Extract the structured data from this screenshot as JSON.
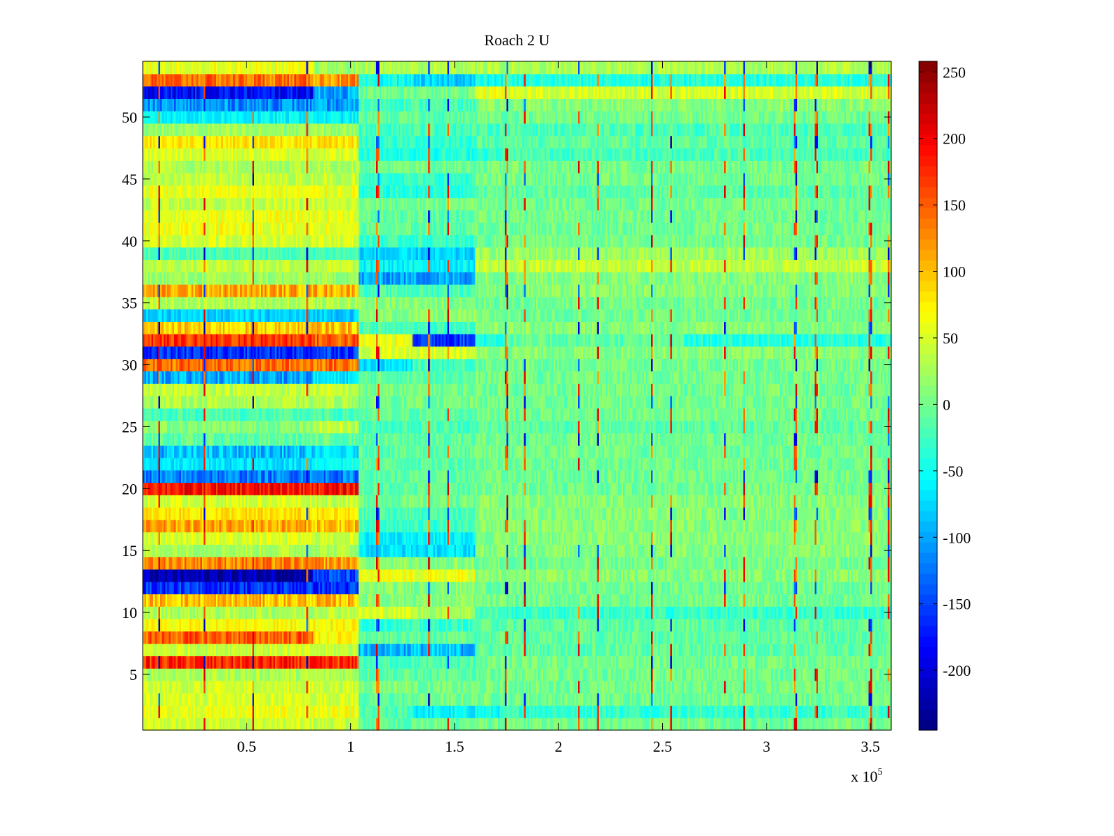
{
  "chart_data": {
    "type": "heatmap",
    "title": "Roach 2 U",
    "xlabel": "",
    "ylabel": "",
    "x_multiplier_label": {
      "base": "x 10",
      "exponent": "5"
    },
    "xlim": [
      0,
      3.6
    ],
    "ylim": [
      0.5,
      54.5
    ],
    "x_ticks": [
      0.5,
      1,
      1.5,
      2,
      2.5,
      3,
      3.5
    ],
    "x_tick_labels": [
      "0.5",
      "1",
      "1.5",
      "2",
      "2.5",
      "3",
      "3.5"
    ],
    "y_ticks": [
      5,
      10,
      15,
      20,
      25,
      30,
      35,
      40,
      45,
      50
    ],
    "y_tick_labels": [
      "5",
      "10",
      "15",
      "20",
      "25",
      "30",
      "35",
      "40",
      "45",
      "50"
    ],
    "colorbar": {
      "colormap": "jet",
      "clim": [
        -245,
        258
      ],
      "ticks": [
        250,
        200,
        150,
        100,
        50,
        0,
        -50,
        -100,
        -150,
        -200
      ],
      "tick_labels": [
        "250",
        "200",
        "150",
        "100",
        "50",
        "0",
        "-50",
        "-100",
        "-150",
        "-200"
      ]
    },
    "rows": 54,
    "segment_edges_x1e5": [
      0,
      0.82,
      1.04,
      1.3,
      1.6,
      1.73,
      2.6,
      3.6
    ],
    "row_segment_means": {
      "1": [
        45,
        40,
        -10,
        0,
        0,
        0,
        0
      ],
      "2": [
        60,
        60,
        -20,
        -60,
        -50,
        -30,
        -30
      ],
      "3": [
        50,
        50,
        -10,
        0,
        0,
        0,
        0
      ],
      "4": [
        45,
        45,
        10,
        0,
        0,
        0,
        0
      ],
      "5": [
        30,
        30,
        -10,
        -10,
        0,
        0,
        0
      ],
      "6": [
        175,
        170,
        -20,
        -20,
        0,
        0,
        0
      ],
      "7": [
        45,
        40,
        -90,
        -90,
        -10,
        -10,
        -10
      ],
      "8": [
        150,
        70,
        -10,
        -10,
        -10,
        -10,
        -10
      ],
      "9": [
        70,
        70,
        -30,
        -30,
        -10,
        -10,
        -10
      ],
      "10": [
        30,
        40,
        50,
        30,
        -20,
        -30,
        -30
      ],
      "11": [
        100,
        100,
        10,
        10,
        0,
        0,
        0
      ],
      "12": [
        -160,
        -160,
        10,
        10,
        0,
        0,
        0
      ],
      "13": [
        -220,
        -150,
        60,
        60,
        10,
        10,
        10
      ],
      "14": [
        130,
        120,
        10,
        10,
        0,
        0,
        0
      ],
      "15": [
        30,
        30,
        -70,
        -70,
        10,
        10,
        10
      ],
      "16": [
        50,
        45,
        -60,
        -60,
        10,
        10,
        10
      ],
      "17": [
        110,
        100,
        -30,
        -30,
        10,
        10,
        10
      ],
      "18": [
        80,
        75,
        -20,
        -20,
        10,
        10,
        10
      ],
      "19": [
        50,
        40,
        0,
        0,
        10,
        10,
        10
      ],
      "20": [
        190,
        190,
        -10,
        -10,
        0,
        0,
        0
      ],
      "21": [
        -120,
        -120,
        -10,
        -10,
        0,
        0,
        0
      ],
      "22": [
        -70,
        -50,
        -10,
        -10,
        0,
        0,
        0
      ],
      "23": [
        -90,
        -70,
        -10,
        -10,
        0,
        0,
        0
      ],
      "24": [
        -10,
        -10,
        -10,
        -10,
        0,
        0,
        0
      ],
      "25": [
        10,
        40,
        -20,
        -20,
        -10,
        -10,
        -10
      ],
      "26": [
        -20,
        -20,
        -10,
        -10,
        0,
        0,
        0
      ],
      "27": [
        30,
        30,
        0,
        0,
        0,
        0,
        0
      ],
      "28": [
        40,
        40,
        0,
        0,
        0,
        0,
        0
      ],
      "29": [
        -100,
        -70,
        -10,
        -10,
        0,
        0,
        0
      ],
      "30": [
        140,
        140,
        -70,
        -20,
        0,
        0,
        0
      ],
      "31": [
        -160,
        -150,
        50,
        50,
        10,
        10,
        10
      ],
      "32": [
        170,
        150,
        60,
        -150,
        -40,
        -10,
        -40
      ],
      "33": [
        90,
        100,
        -20,
        -20,
        10,
        10,
        10
      ],
      "34": [
        -80,
        -80,
        10,
        10,
        0,
        0,
        0
      ],
      "35": [
        30,
        30,
        10,
        10,
        0,
        0,
        0
      ],
      "36": [
        110,
        110,
        -20,
        -20,
        10,
        10,
        10
      ],
      "37": [
        20,
        20,
        -100,
        -100,
        10,
        10,
        10
      ],
      "38": [
        40,
        40,
        -60,
        -60,
        40,
        40,
        40
      ],
      "39": [
        -20,
        -20,
        -80,
        -80,
        20,
        20,
        20
      ],
      "40": [
        50,
        50,
        -30,
        -30,
        0,
        0,
        0
      ],
      "41": [
        60,
        60,
        -10,
        -10,
        0,
        0,
        0
      ],
      "42": [
        60,
        60,
        -10,
        -10,
        0,
        0,
        0
      ],
      "43": [
        40,
        40,
        0,
        0,
        0,
        0,
        0
      ],
      "44": [
        60,
        60,
        -40,
        -40,
        -10,
        -10,
        -10
      ],
      "45": [
        40,
        40,
        -30,
        -30,
        0,
        0,
        0
      ],
      "46": [
        30,
        30,
        0,
        0,
        0,
        0,
        0
      ],
      "47": [
        50,
        50,
        -40,
        -40,
        -30,
        -20,
        -20
      ],
      "48": [
        80,
        80,
        -30,
        -30,
        -10,
        -10,
        -10
      ],
      "49": [
        20,
        20,
        -20,
        -20,
        -20,
        -20,
        -20
      ],
      "50": [
        -60,
        -60,
        -10,
        -10,
        0,
        0,
        0
      ],
      "51": [
        -110,
        -110,
        -20,
        -20,
        10,
        10,
        10
      ],
      "52": [
        -180,
        -100,
        0,
        0,
        60,
        50,
        50
      ],
      "53": [
        140,
        120,
        -50,
        -80,
        -50,
        -40,
        -40
      ],
      "54": [
        60,
        20,
        30,
        30,
        30,
        30,
        30
      ]
    },
    "spike_columns_x1e5": [
      0.08,
      0.3,
      0.53,
      0.79,
      1.13,
      1.38,
      1.47,
      1.75,
      1.84,
      2.1,
      2.19,
      2.45,
      2.54,
      2.8,
      2.89,
      3.14,
      3.24,
      3.5,
      3.59
    ]
  }
}
